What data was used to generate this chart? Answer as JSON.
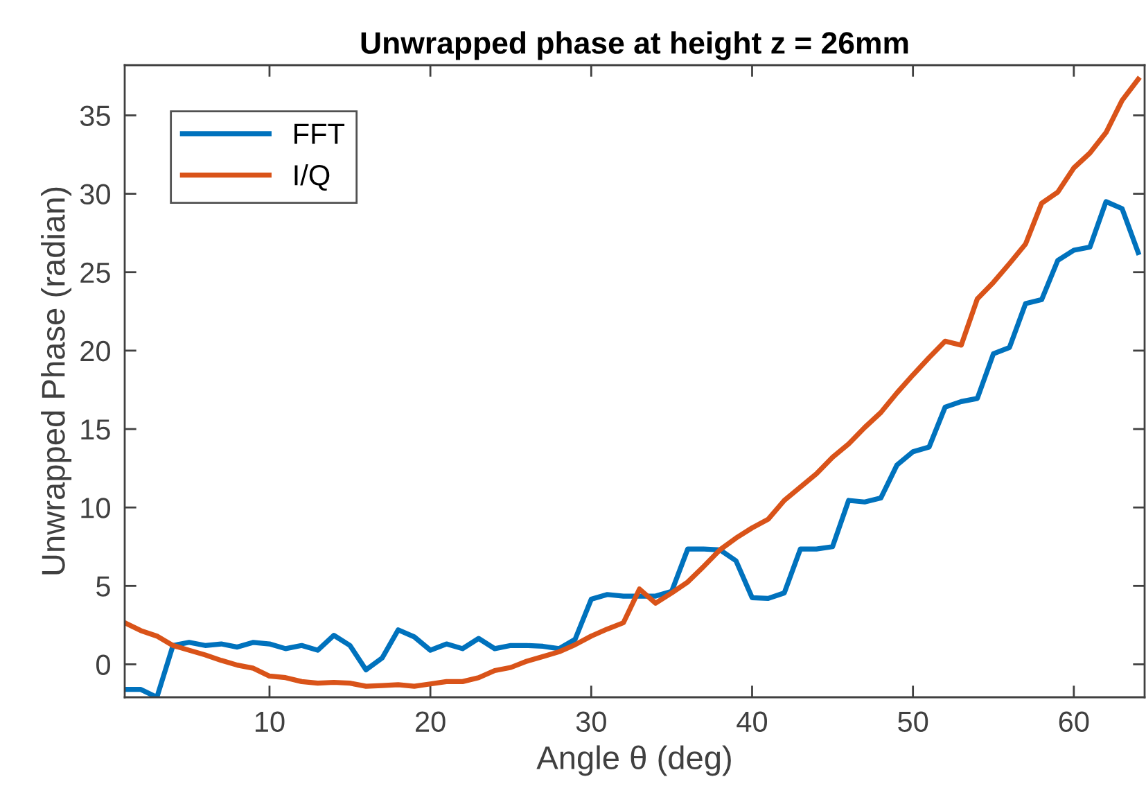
{
  "chart_data": {
    "type": "line",
    "title": "Unwrapped phase at height z = 26mm",
    "xlabel": "Angle θ (deg)",
    "ylabel": "Unwrapped Phase (radian)",
    "x": [
      1,
      2,
      3,
      4,
      5,
      6,
      7,
      8,
      9,
      10,
      11,
      12,
      13,
      14,
      15,
      16,
      17,
      18,
      19,
      20,
      21,
      22,
      23,
      24,
      25,
      26,
      27,
      28,
      29,
      30,
      31,
      32,
      33,
      34,
      35,
      36,
      37,
      38,
      39,
      40,
      41,
      42,
      43,
      44,
      45,
      46,
      47,
      48,
      49,
      50,
      51,
      52,
      53,
      54,
      55,
      56,
      57,
      58,
      59,
      60,
      61,
      62,
      63,
      64
    ],
    "series": [
      {
        "name": "FFT",
        "color": "#0072bd",
        "values": [
          -1.6,
          -1.6,
          -2.1,
          1.2,
          1.4,
          1.2,
          1.3,
          1.1,
          1.4,
          1.3,
          1.0,
          1.2,
          0.9,
          1.85,
          1.2,
          -0.35,
          0.4,
          2.2,
          1.75,
          0.9,
          1.3,
          1.0,
          1.65,
          1.0,
          1.2,
          1.2,
          1.15,
          1.0,
          1.6,
          4.15,
          4.45,
          4.35,
          4.35,
          4.35,
          4.65,
          7.35,
          7.35,
          7.3,
          6.6,
          4.25,
          4.2,
          4.55,
          7.35,
          7.35,
          7.5,
          10.45,
          10.35,
          10.6,
          12.7,
          13.55,
          13.85,
          16.4,
          16.75,
          16.95,
          19.8,
          20.2,
          23.0,
          23.25,
          25.75,
          26.4,
          26.6,
          29.5,
          29.05,
          26.25
        ]
      },
      {
        "name": "I/Q",
        "color": "#d95319",
        "values": [
          2.65,
          2.15,
          1.8,
          1.2,
          0.9,
          0.6,
          0.25,
          -0.05,
          -0.25,
          -0.75,
          -0.85,
          -1.1,
          -1.2,
          -1.15,
          -1.2,
          -1.4,
          -1.35,
          -1.3,
          -1.4,
          -1.25,
          -1.1,
          -1.1,
          -0.85,
          -0.4,
          -0.2,
          0.2,
          0.5,
          0.8,
          1.25,
          1.8,
          2.25,
          2.65,
          4.8,
          3.9,
          4.55,
          5.25,
          6.25,
          7.3,
          8.05,
          8.7,
          9.25,
          10.45,
          11.3,
          12.15,
          13.2,
          14.05,
          15.1,
          16.05,
          17.3,
          18.45,
          19.55,
          20.6,
          20.35,
          23.3,
          24.35,
          25.55,
          26.8,
          29.4,
          30.1,
          31.65,
          32.6,
          33.9,
          35.95,
          37.3
        ]
      }
    ],
    "xlim": [
      1,
      64.4
    ],
    "xticks": [
      10,
      20,
      30,
      40,
      50,
      60
    ],
    "ylim": [
      -2.1,
      38.2
    ],
    "yticks": [
      0,
      5,
      10,
      15,
      20,
      25,
      30,
      35
    ],
    "legend": "top left",
    "grid": false,
    "line_style": "solid",
    "marker": "none"
  }
}
